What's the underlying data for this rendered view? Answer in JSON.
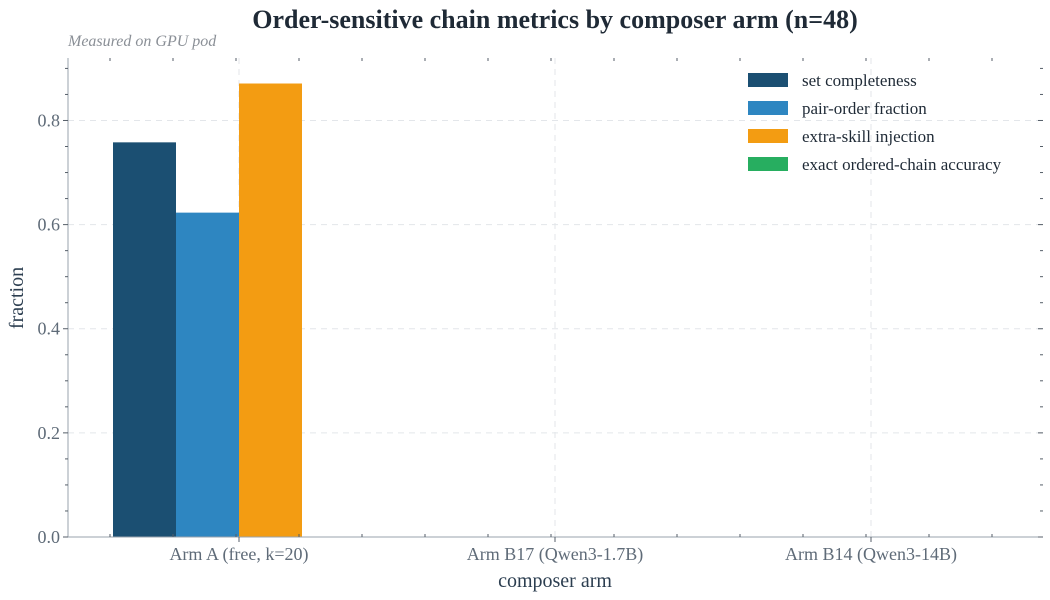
{
  "chart_data": {
    "type": "bar",
    "title": "Order-sensitive chain metrics by composer arm (n=48)",
    "subtitle": "Measured on GPU pod",
    "xlabel": "composer arm",
    "ylabel": "fraction",
    "ylim": [
      0,
      0.92
    ],
    "yticks": [
      0.0,
      0.2,
      0.4,
      0.6,
      0.8
    ],
    "categories": [
      "Arm A (free, k=20)",
      "Arm B17 (Qwen3-1.7B)",
      "Arm B14 (Qwen3-14B)"
    ],
    "series": [
      {
        "name": "set completeness",
        "color": "#1b4f72",
        "values": [
          0.758,
          0.0,
          0.0
        ]
      },
      {
        "name": "pair-order fraction",
        "color": "#2e86c1",
        "values": [
          0.623,
          0.0,
          0.0
        ]
      },
      {
        "name": "extra-skill injection",
        "color": "#f39c12",
        "values": [
          0.871,
          0.0,
          0.0
        ]
      },
      {
        "name": "exact ordered-chain accuracy",
        "color": "#27ae60",
        "values": [
          0.0,
          0.0,
          0.0
        ]
      }
    ],
    "grid": true,
    "legend_position": "top-right"
  }
}
